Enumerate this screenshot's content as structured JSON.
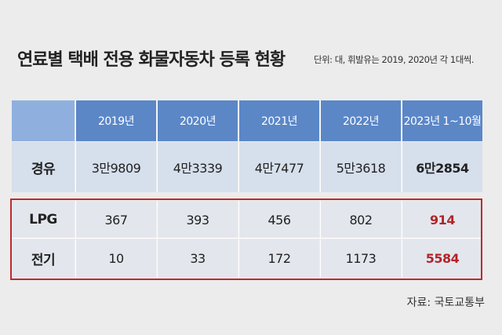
{
  "header": {
    "title": "연료별 택배 전용 화물자동차 등록 현황",
    "unit_note": "단위: 대, 휘발유는 2019, 2020년 각 1대씩."
  },
  "table": {
    "columns": [
      "2019년",
      "2020년",
      "2021년",
      "2022년",
      "2023년 1~10월"
    ],
    "rows": [
      [
        "경유",
        "3만9809",
        "4만3339",
        "4만7477",
        "5만3618",
        "6만2854"
      ],
      [
        "LPG",
        "367",
        "393",
        "456",
        "802",
        "914"
      ],
      [
        "전기",
        "10",
        "33",
        "172",
        "1173",
        "5584"
      ]
    ]
  },
  "footer": {
    "source": "자료: 국토교통부"
  }
}
